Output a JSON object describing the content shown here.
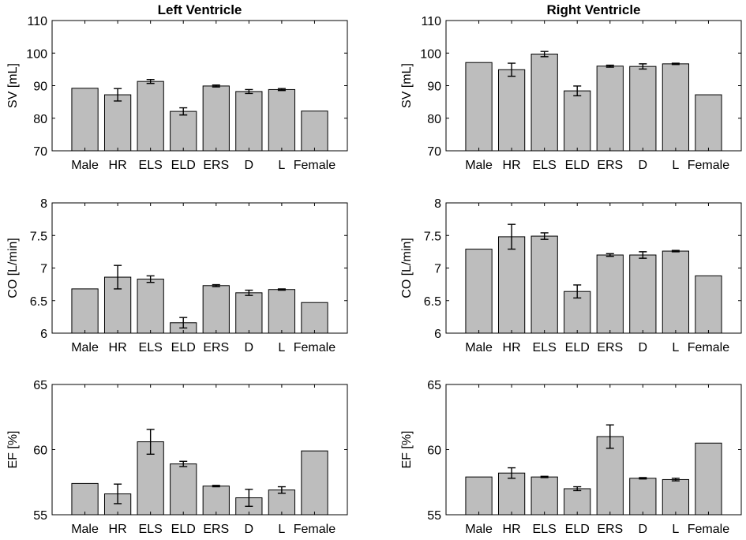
{
  "chart_data": [
    {
      "type": "bar",
      "title": "Left Ventricle",
      "ylabel": "SV [mL]",
      "ylim": [
        70,
        110
      ],
      "yticks": [
        70,
        80,
        90,
        100,
        110
      ],
      "categories": [
        "Male",
        "HR",
        "ELS",
        "ELD",
        "ERS",
        "D",
        "L",
        "Female"
      ],
      "values": [
        89.2,
        87.2,
        91.3,
        82.1,
        89.9,
        88.2,
        88.8,
        82.2
      ],
      "errors": [
        0,
        1.9,
        0.6,
        1.1,
        0.3,
        0.6,
        0.3,
        0
      ]
    },
    {
      "type": "bar",
      "title": "Right Ventricle",
      "ylabel": "SV [mL]",
      "ylim": [
        70,
        110
      ],
      "yticks": [
        70,
        80,
        90,
        100,
        110
      ],
      "categories": [
        "Male",
        "HR",
        "ELS",
        "ELD",
        "ERS",
        "D",
        "L",
        "Female"
      ],
      "values": [
        97.1,
        94.9,
        99.7,
        88.4,
        96.0,
        95.9,
        96.7,
        87.2
      ],
      "errors": [
        0,
        2.0,
        0.8,
        1.5,
        0.3,
        0.8,
        0.2,
        0
      ]
    },
    {
      "type": "bar",
      "title": "",
      "ylabel": "CO [L/min]",
      "ylim": [
        6,
        8
      ],
      "yticks": [
        6,
        6.5,
        7,
        7.5,
        8
      ],
      "categories": [
        "Male",
        "HR",
        "ELS",
        "ELD",
        "ERS",
        "D",
        "L",
        "Female"
      ],
      "values": [
        6.68,
        6.86,
        6.83,
        6.16,
        6.73,
        6.62,
        6.67,
        6.47
      ],
      "errors": [
        0,
        0.18,
        0.05,
        0.08,
        0.015,
        0.04,
        0.01,
        0
      ]
    },
    {
      "type": "bar",
      "title": "",
      "ylabel": "CO [L/min]",
      "ylim": [
        6,
        8
      ],
      "yticks": [
        6,
        6.5,
        7,
        7.5,
        8
      ],
      "categories": [
        "Male",
        "HR",
        "ELS",
        "ELD",
        "ERS",
        "D",
        "L",
        "Female"
      ],
      "values": [
        7.29,
        7.48,
        7.49,
        6.64,
        7.2,
        7.2,
        7.26,
        6.88
      ],
      "errors": [
        0,
        0.19,
        0.05,
        0.1,
        0.02,
        0.05,
        0.01,
        0
      ]
    },
    {
      "type": "bar",
      "title": "",
      "ylabel": "EF [%]",
      "ylim": [
        55,
        65
      ],
      "yticks": [
        55,
        60,
        65
      ],
      "categories": [
        "Male",
        "HR",
        "ELS",
        "ELD",
        "ERS",
        "D",
        "L",
        "Female"
      ],
      "values": [
        57.4,
        56.6,
        60.6,
        58.9,
        57.2,
        56.3,
        56.9,
        59.9
      ],
      "errors": [
        0,
        0.75,
        0.95,
        0.2,
        0.05,
        0.65,
        0.25,
        0
      ]
    },
    {
      "type": "bar",
      "title": "",
      "ylabel": "EF [%]",
      "ylim": [
        55,
        65
      ],
      "yticks": [
        55,
        60,
        65
      ],
      "categories": [
        "Male",
        "HR",
        "ELS",
        "ELD",
        "ERS",
        "D",
        "L",
        "Female"
      ],
      "values": [
        57.9,
        58.2,
        57.9,
        57.0,
        61.0,
        57.8,
        57.7,
        60.5
      ],
      "errors": [
        0,
        0.4,
        0.05,
        0.15,
        0.9,
        0.05,
        0.1,
        0
      ]
    }
  ]
}
